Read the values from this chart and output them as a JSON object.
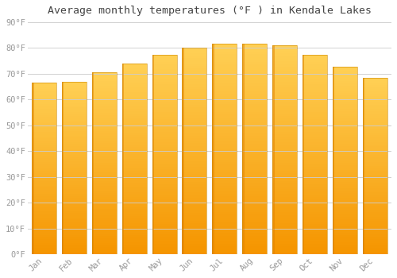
{
  "title": "Average monthly temperatures (°F ) in Kendale Lakes",
  "months": [
    "Jan",
    "Feb",
    "Mar",
    "Apr",
    "May",
    "Jun",
    "Jul",
    "Aug",
    "Sep",
    "Oct",
    "Nov",
    "Dec"
  ],
  "values": [
    66.5,
    67.0,
    70.7,
    74.0,
    77.5,
    80.1,
    81.7,
    81.7,
    81.0,
    77.5,
    72.7,
    68.3
  ],
  "bar_color": "#FFC020",
  "bar_color_bottom": "#F59500",
  "bar_color_top": "#FFD050",
  "bar_edge_color": "#CC8800",
  "background_color": "#FFFFFF",
  "plot_bg_color": "#FFFFFF",
  "grid_color": "#CCCCCC",
  "tick_label_color": "#999999",
  "title_color": "#444444",
  "ylim": [
    0,
    90
  ],
  "yticks": [
    0,
    10,
    20,
    30,
    40,
    50,
    60,
    70,
    80,
    90
  ],
  "ytick_labels": [
    "0°F",
    "10°F",
    "20°F",
    "30°F",
    "40°F",
    "50°F",
    "60°F",
    "70°F",
    "80°F",
    "90°F"
  ],
  "bar_width": 0.82,
  "figsize": [
    5.0,
    3.5
  ],
  "dpi": 100,
  "title_fontsize": 9.5,
  "tick_fontsize": 7.5
}
